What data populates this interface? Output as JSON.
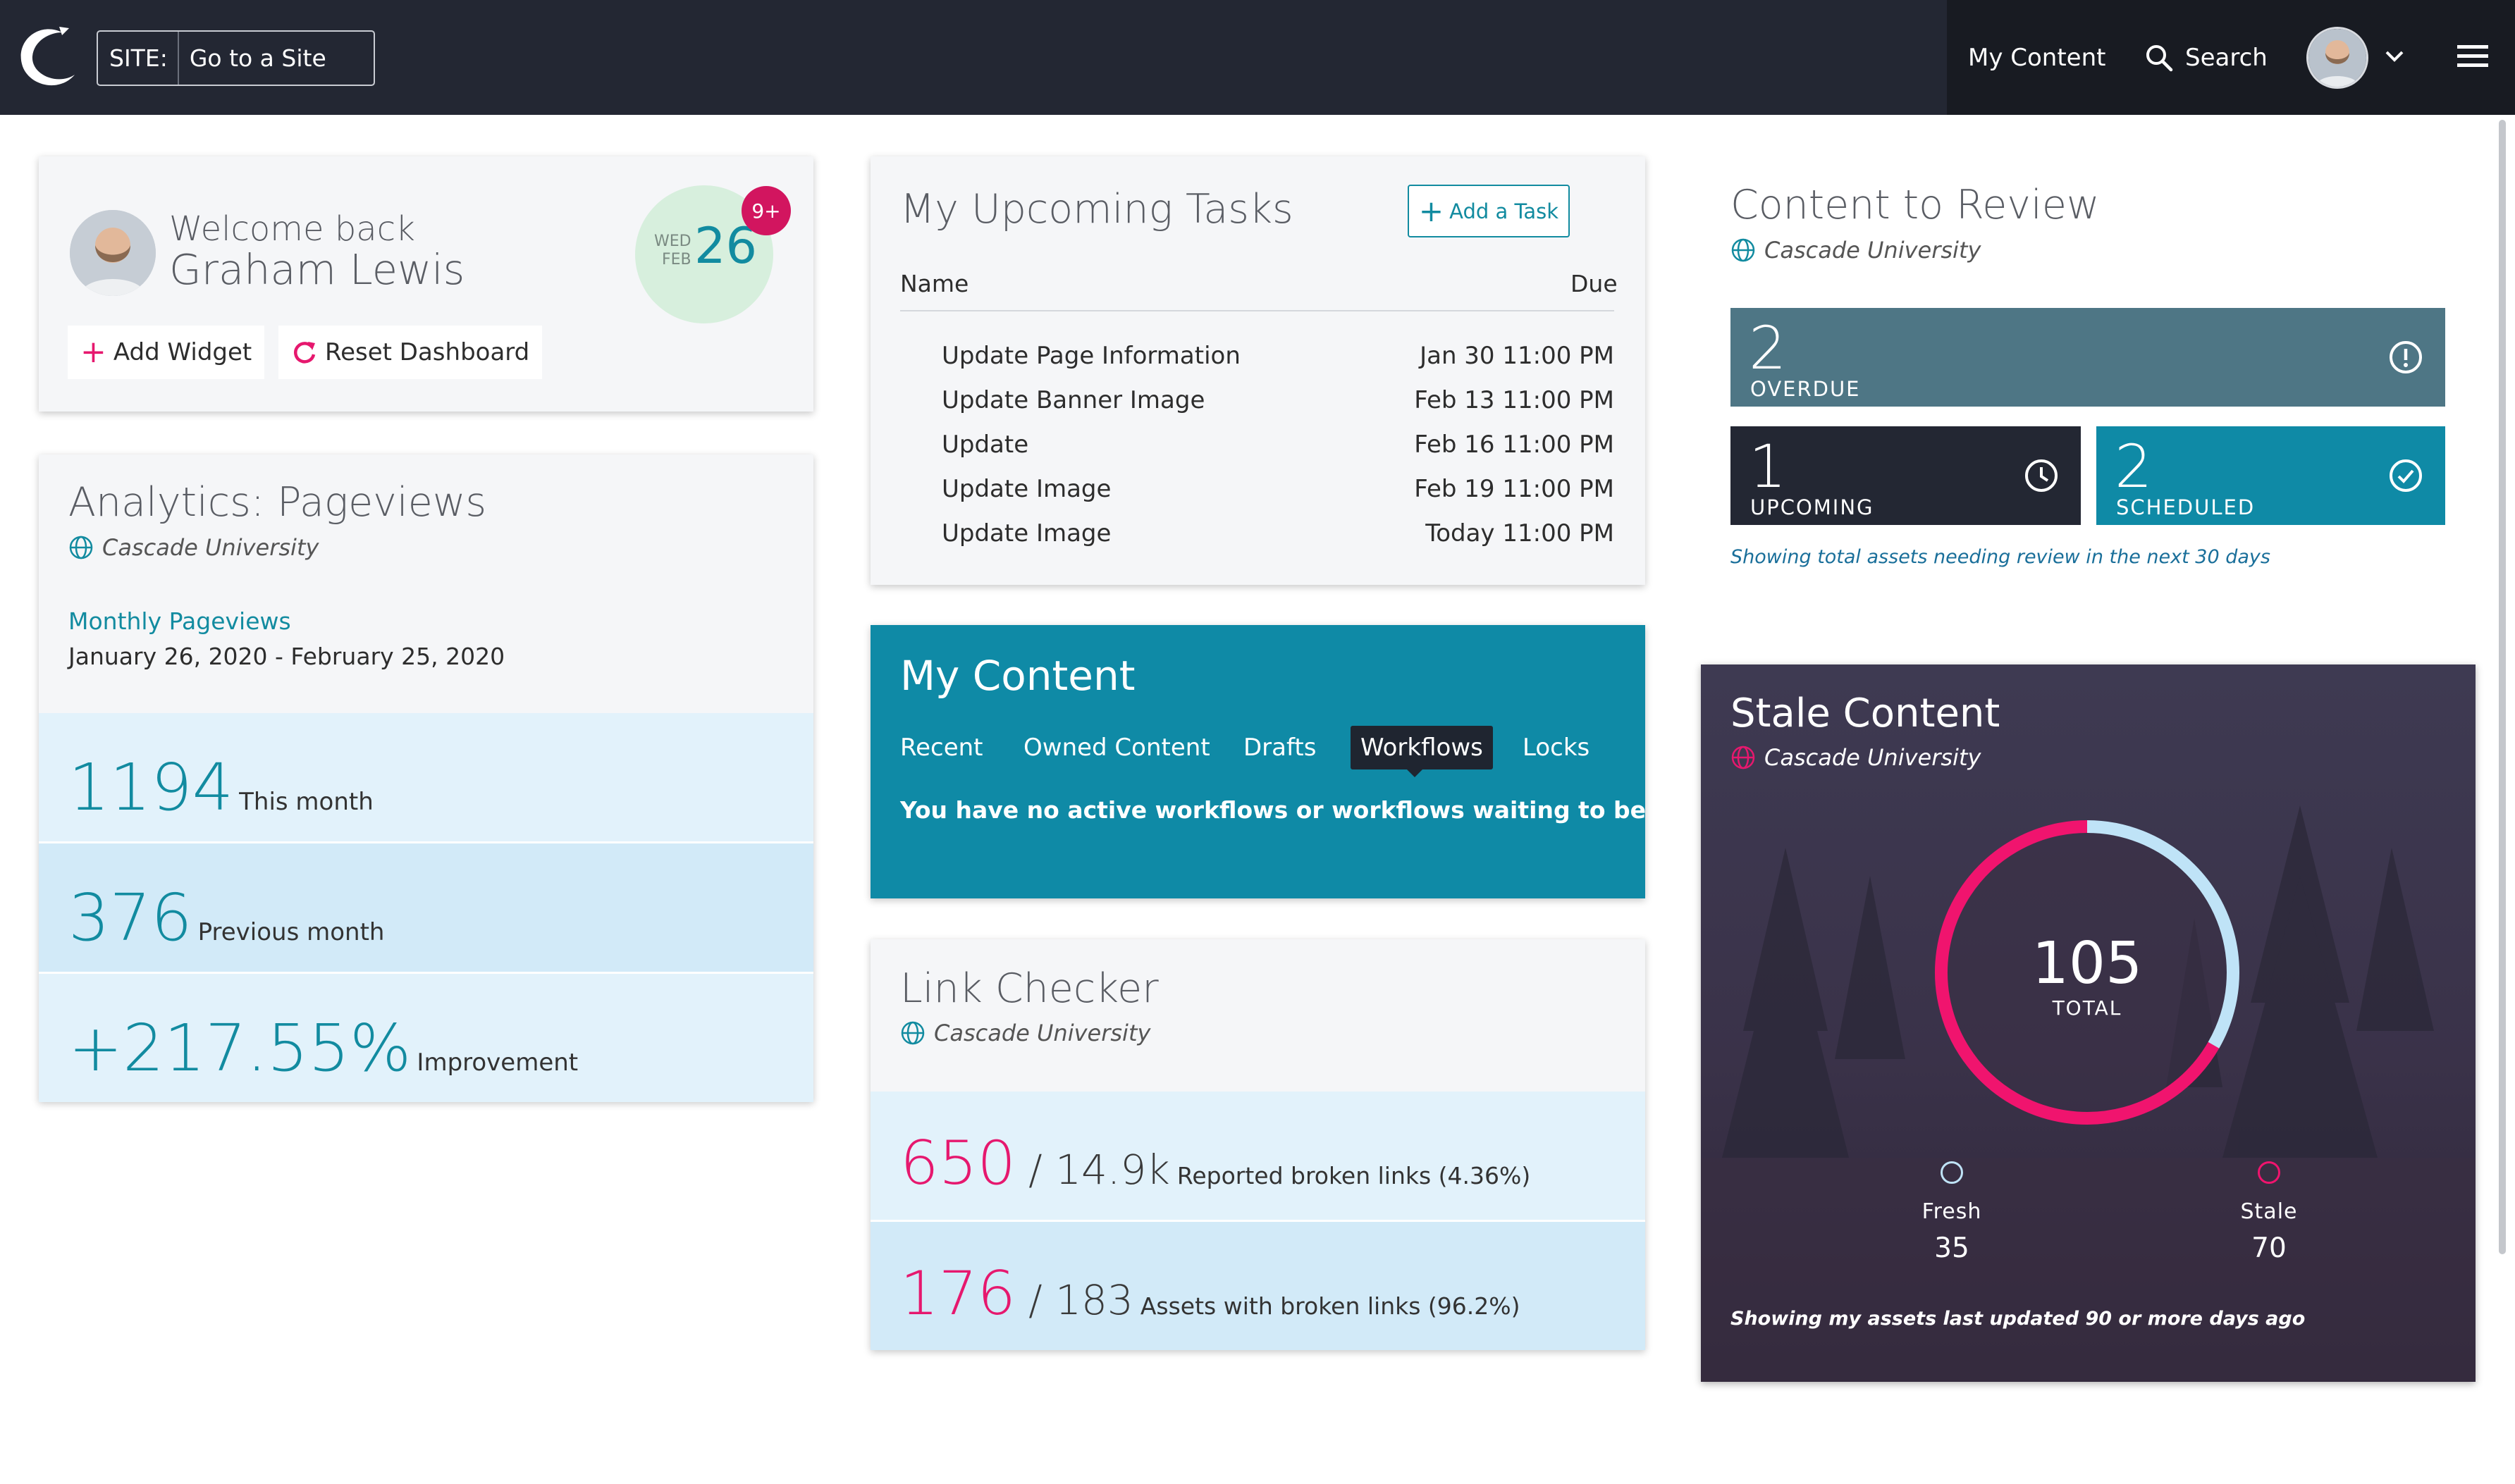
{
  "topbar": {
    "site_label": "SITE:",
    "site_placeholder": "Go to a Site",
    "my_content": "My Content",
    "search": "Search"
  },
  "welcome": {
    "greeting": "Welcome back",
    "name": "Graham Lewis",
    "day": "WED",
    "month": "FEB",
    "date": "26",
    "badge": "9+",
    "add_widget": "Add Widget",
    "reset_dashboard": "Reset Dashboard"
  },
  "analytics": {
    "title": "Analytics: Pageviews",
    "site": "Cascade University",
    "period_label": "Monthly Pageviews",
    "period_range": "January 26, 2020 - February 25, 2020",
    "metrics": [
      {
        "value": "1194",
        "label": "This month"
      },
      {
        "value": "376",
        "label": "Previous month"
      },
      {
        "value": "+217.55%",
        "label": "Improvement"
      }
    ]
  },
  "tasks": {
    "title": "My Upcoming Tasks",
    "add_button": "Add a Task",
    "col_name": "Name",
    "col_due": "Due",
    "rows": [
      {
        "name": "Update Page Information",
        "due": "Jan 30 11:00 PM"
      },
      {
        "name": "Update Banner Image",
        "due": "Feb 13 11:00 PM"
      },
      {
        "name": "Update",
        "due": "Feb 16 11:00 PM"
      },
      {
        "name": "Update Image",
        "due": "Feb 19 11:00 PM"
      },
      {
        "name": "Update Image",
        "due": "Today 11:00 PM"
      }
    ]
  },
  "my_content": {
    "title": "My Content",
    "tabs": [
      "Recent",
      "Owned Content",
      "Drafts",
      "Workflows",
      "Locks"
    ],
    "active_tab": "Workflows",
    "message": "You have no active workflows or workflows waiting to be assigned"
  },
  "link_checker": {
    "title": "Link Checker",
    "site": "Cascade University",
    "rows": [
      {
        "count": "650",
        "total": "/ 14.9k",
        "label": "Reported broken links (4.36%)"
      },
      {
        "count": "176",
        "total": "/ 183",
        "label": "Assets with broken links (96.2%)"
      }
    ]
  },
  "review": {
    "title": "Content to Review",
    "site": "Cascade University",
    "overdue": {
      "count": "2",
      "label": "OVERDUE"
    },
    "upcoming": {
      "count": "1",
      "label": "UPCOMING"
    },
    "scheduled": {
      "count": "2",
      "label": "SCHEDULED"
    },
    "note": "Showing total assets needing review in the next 30 days"
  },
  "stale": {
    "title": "Stale Content",
    "site": "Cascade University",
    "total": "105",
    "total_label": "TOTAL",
    "fresh_label": "Fresh",
    "fresh_value": "35",
    "stale_label": "Stale",
    "stale_value": "70",
    "fresh_fraction": 0.333,
    "note": "Showing my assets last updated 90 or more days ago"
  },
  "colors": {
    "teal": "#128ba0",
    "pink": "#e6186e",
    "navy": "#232733",
    "fresh_ring": "#bfe3f7"
  }
}
